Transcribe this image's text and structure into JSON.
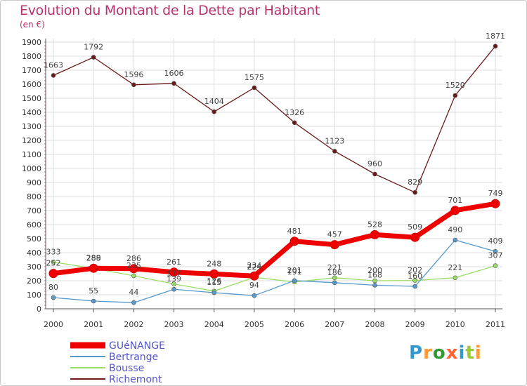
{
  "title": "Evolution du Montant de la Dette par Habitant",
  "unit": "(en €)",
  "logo": "Proxiti",
  "chart_data": {
    "type": "line",
    "title": "Evolution du Montant de la Dette par Habitant",
    "ylabel": "(en €)",
    "ylim": [
      0,
      1900
    ],
    "yticks": [
      0,
      100,
      200,
      300,
      400,
      500,
      600,
      700,
      800,
      900,
      1000,
      1100,
      1200,
      1300,
      1400,
      1500,
      1600,
      1700,
      1800,
      1900
    ],
    "x": [
      "2000",
      "2001",
      "2002",
      "2003",
      "2004",
      "2005",
      "2006",
      "2007",
      "2008",
      "2009",
      "2010",
      "2011"
    ],
    "grid": true,
    "legend_position": "bottom-left",
    "series": [
      {
        "name": "Richemont",
        "color": "#6b1a1a",
        "values": [
          1663,
          1792,
          1596,
          1606,
          1404,
          1575,
          1326,
          1123,
          960,
          829,
          1520,
          1871
        ]
      },
      {
        "name": "Bousse",
        "color": "#99dd66",
        "values": [
          333,
          288,
          235,
          177,
          126,
          224,
          191,
          221,
          200,
          202,
          221,
          307
        ]
      },
      {
        "name": "Bertrange",
        "color": "#5599cc",
        "values": [
          80,
          55,
          44,
          139,
          115,
          94,
          201,
          186,
          168,
          160,
          490,
          409
        ]
      },
      {
        "name": "GUéNANGE",
        "color": "#ee0000",
        "values": [
          252,
          289,
          286,
          261,
          248,
          234,
          481,
          457,
          528,
          509,
          701,
          749
        ]
      }
    ]
  }
}
